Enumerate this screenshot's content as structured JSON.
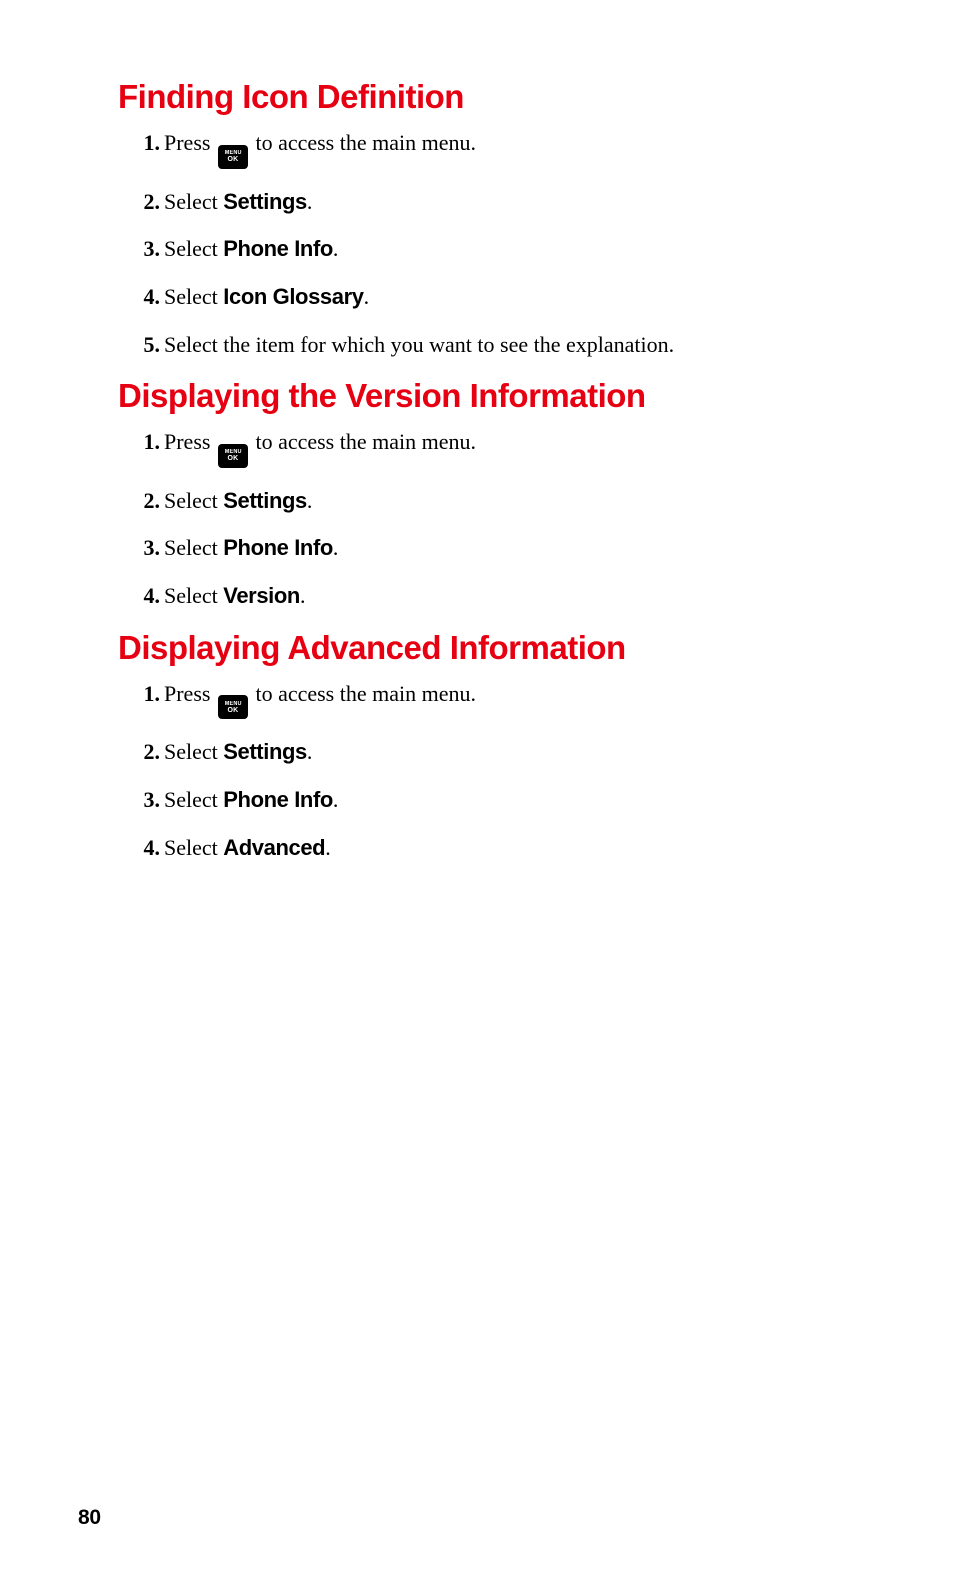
{
  "page_number": "80",
  "icon": {
    "menu_ok_top": "MENU",
    "menu_ok_bottom": "OK"
  },
  "sections": [
    {
      "heading": "Finding Icon Definition",
      "steps": [
        {
          "num": "1.",
          "kind": "press_menu",
          "before": "Press ",
          "after": " to access the main menu."
        },
        {
          "num": "2.",
          "kind": "select",
          "prefix": "Select ",
          "bold": "Settings",
          "suffix": "."
        },
        {
          "num": "3.",
          "kind": "select",
          "prefix": "Select ",
          "bold": "Phone Info",
          "suffix": "."
        },
        {
          "num": "4.",
          "kind": "select",
          "prefix": "Select ",
          "bold": "Icon Glossary",
          "suffix": "."
        },
        {
          "num": "5.",
          "kind": "plain",
          "text": "Select the item for which you want to see the explanation."
        }
      ]
    },
    {
      "heading": "Displaying the Version Information",
      "steps": [
        {
          "num": "1.",
          "kind": "press_menu",
          "before": "Press ",
          "after": " to access the main menu."
        },
        {
          "num": "2.",
          "kind": "select",
          "prefix": "Select ",
          "bold": "Settings",
          "suffix": "."
        },
        {
          "num": "3.",
          "kind": "select",
          "prefix": "Select ",
          "bold": "Phone Info",
          "suffix": "."
        },
        {
          "num": "4.",
          "kind": "select",
          "prefix": "Select ",
          "bold": "Version",
          "suffix": "."
        }
      ]
    },
    {
      "heading": "Displaying Advanced Information",
      "steps": [
        {
          "num": "1.",
          "kind": "press_menu",
          "before": "Press ",
          "after": " to access the main menu."
        },
        {
          "num": "2.",
          "kind": "select",
          "prefix": "Select ",
          "bold": "Settings",
          "suffix": "."
        },
        {
          "num": "3.",
          "kind": "select",
          "prefix": "Select ",
          "bold": "Phone Info",
          "suffix": "."
        },
        {
          "num": "4.",
          "kind": "select",
          "prefix": "Select ",
          "bold": "Advanced",
          "suffix": "."
        }
      ]
    }
  ]
}
